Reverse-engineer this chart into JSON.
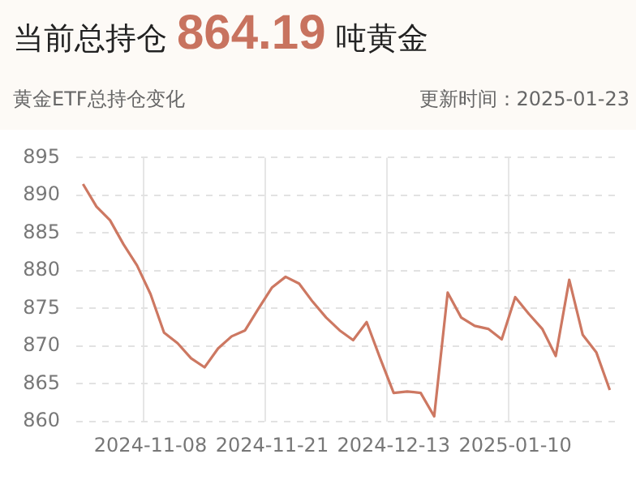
{
  "chart_data": {
    "type": "line",
    "title": "当前总持仓 864.19 吨黄金",
    "subtitle": "黄金ETF总持仓变化",
    "annotations": [
      "更新时间：2025-01-23"
    ],
    "categories": [
      null,
      null,
      null,
      null,
      null,
      "2024-11-08",
      null,
      null,
      null,
      null,
      null,
      null,
      null,
      null,
      "2024-11-21",
      null,
      null,
      null,
      null,
      null,
      null,
      null,
      null,
      "2024-12-13",
      null,
      null,
      null,
      null,
      null,
      null,
      null,
      null,
      "2025-01-10",
      null,
      null,
      null,
      null,
      null,
      null,
      null
    ],
    "series": [
      {
        "color": "#cd7862",
        "values": [
          891.5,
          888.5,
          886.7,
          883.5,
          880.7,
          876.9,
          871.8,
          870.4,
          868.4,
          867.2,
          869.7,
          871.3,
          872.1,
          875.0,
          877.8,
          879.2,
          878.3,
          875.9,
          873.8,
          872.1,
          870.8,
          873.2,
          868.4,
          863.8,
          864.0,
          863.8,
          860.7,
          877.1,
          873.8,
          872.7,
          872.3,
          870.9,
          876.5,
          874.3,
          872.3,
          868.7,
          878.8,
          871.5,
          869.2,
          864.2
        ]
      }
    ],
    "ylim": [
      860,
      895
    ],
    "yticks": [
      860,
      865,
      870,
      875,
      880,
      885,
      890,
      895
    ],
    "grid": true,
    "legend": false,
    "marker": "none",
    "line_style": "solid"
  }
}
